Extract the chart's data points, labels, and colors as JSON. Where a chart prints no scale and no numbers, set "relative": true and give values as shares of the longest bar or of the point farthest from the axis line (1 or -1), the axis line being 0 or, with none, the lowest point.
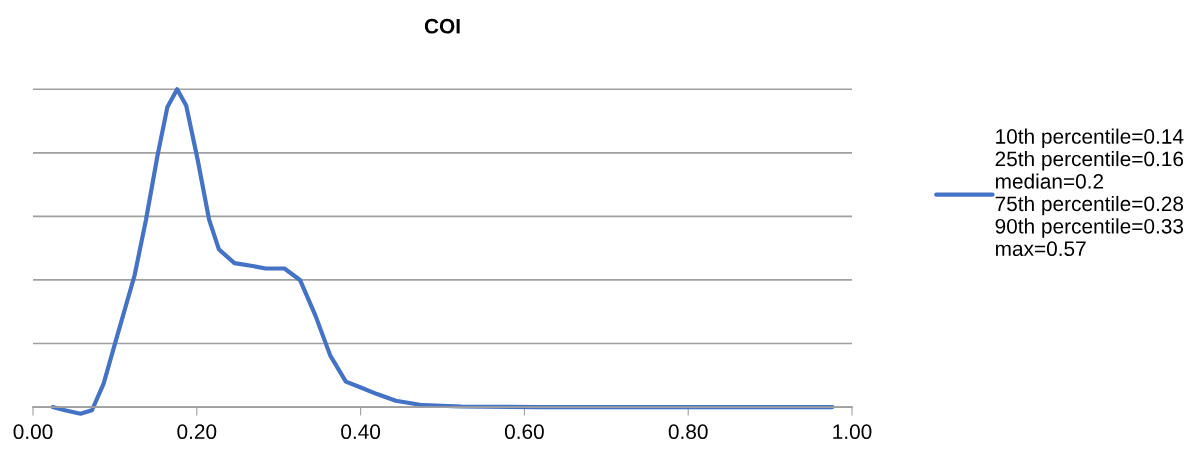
{
  "chart_data": {
    "type": "line",
    "title": "COI",
    "x": [
      0.024,
      0.039,
      0.058,
      0.072,
      0.086,
      0.1,
      0.124,
      0.138,
      0.152,
      0.164,
      0.176,
      0.187,
      0.201,
      0.215,
      0.227,
      0.246,
      0.27,
      0.284,
      0.307,
      0.326,
      0.345,
      0.363,
      0.382,
      0.401,
      0.42,
      0.443,
      0.476,
      0.523,
      0.617,
      0.8,
      0.976
    ],
    "series": [
      {
        "name": "10th percentile=0.14\n25th percentile=0.16\nmedian=0.2\n75th percentile=0.28\n90th percentile=0.33\nmax=0.57",
        "color": "#4472c4",
        "values": [
          0,
          -0.01,
          -0.021,
          -0.01,
          0.072,
          0.199,
          0.414,
          0.59,
          0.791,
          0.943,
          1,
          0.949,
          0.779,
          0.59,
          0.496,
          0.453,
          0.443,
          0.436,
          0.436,
          0.4,
          0.287,
          0.162,
          0.08,
          0.061,
          0.041,
          0.02,
          0.006,
          0.002,
          0,
          0,
          0
        ]
      }
    ],
    "xlim": [
      0,
      1
    ],
    "xticks": [
      {
        "value": 0,
        "label": "0.00"
      },
      {
        "value": 0.2,
        "label": "0.20"
      },
      {
        "value": 0.4,
        "label": "0.40"
      },
      {
        "value": 0.6,
        "label": "0.60"
      },
      {
        "value": 0.8,
        "label": "0.80"
      },
      {
        "value": 1,
        "label": "1.00"
      }
    ],
    "relative": true,
    "tick_labels": "x",
    "grid": "y",
    "legend": "right",
    "marker": "none",
    "line_style": "solid"
  }
}
